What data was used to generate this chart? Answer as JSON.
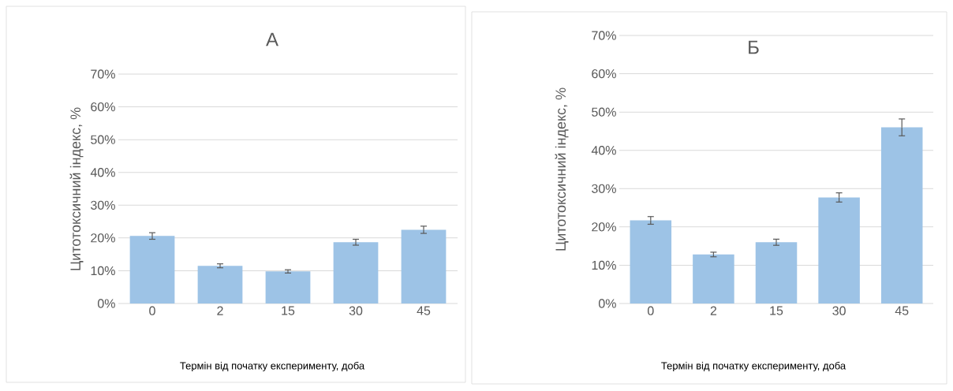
{
  "chart_data": [
    {
      "type": "bar",
      "title": "А",
      "xlabel": "Термін від початку експерименту, доба",
      "ylabel": "Цитотоксичний індекс, %",
      "categories": [
        "0",
        "2",
        "15",
        "30",
        "45"
      ],
      "values": [
        20.6,
        11.5,
        9.8,
        18.7,
        22.5
      ],
      "errors": [
        1.0,
        0.6,
        0.5,
        0.9,
        1.1
      ],
      "color": "#9dc3e6",
      "ylim": [
        0,
        70
      ],
      "yticks": [
        {
          "value": 0,
          "label": "0%"
        },
        {
          "value": 10,
          "label": "10%"
        },
        {
          "value": 20,
          "label": "20%"
        },
        {
          "value": 30,
          "label": "30%"
        },
        {
          "value": 40,
          "label": "40%"
        },
        {
          "value": 50,
          "label": "50%"
        },
        {
          "value": 60,
          "label": "60%"
        },
        {
          "value": 70,
          "label": "70%"
        }
      ],
      "grid": "y"
    },
    {
      "type": "bar",
      "title": "Б",
      "xlabel": "Термін від початку експерименту, доба",
      "ylabel": "Цитотоксичний індекс, %",
      "categories": [
        "0",
        "2",
        "15",
        "30",
        "45"
      ],
      "values": [
        21.7,
        12.8,
        16.0,
        27.7,
        46.0
      ],
      "errors": [
        1.0,
        0.6,
        0.8,
        1.2,
        2.2
      ],
      "color": "#9dc3e6",
      "ylim": [
        0,
        70
      ],
      "yticks": [
        {
          "value": 0,
          "label": "0%"
        },
        {
          "value": 10,
          "label": "10%"
        },
        {
          "value": 20,
          "label": "20%"
        },
        {
          "value": 30,
          "label": "30%"
        },
        {
          "value": 40,
          "label": "40%"
        },
        {
          "value": 50,
          "label": "50%"
        },
        {
          "value": 60,
          "label": "60%"
        },
        {
          "value": 70,
          "label": "70%"
        }
      ],
      "grid": "y"
    }
  ]
}
